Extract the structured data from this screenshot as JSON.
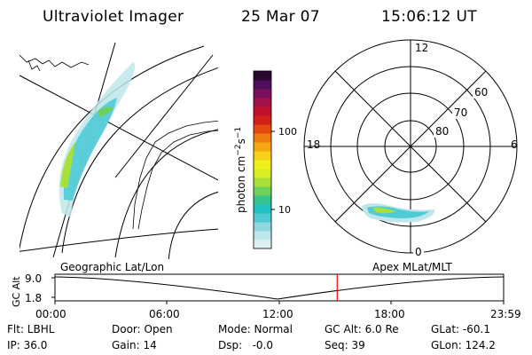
{
  "header": {
    "instrument": "Ultraviolet Imager",
    "date": "25 Mar 07",
    "time": "15:06:12 UT"
  },
  "colorbar": {
    "unit_label": "photon cm",
    "unit_exp1": "−2",
    "unit_s": "s",
    "unit_exp2": "−1",
    "tick_100": "100",
    "tick_10": "10",
    "colors": [
      "#dff0f2",
      "#bfe6ea",
      "#8fd8e0",
      "#4fcbd6",
      "#22c2c4",
      "#37c48f",
      "#6ed15a",
      "#a8e03a",
      "#d8ee22",
      "#f2f01a",
      "#f7d11a",
      "#f5a812",
      "#ee7b10",
      "#e24a12",
      "#d21f18",
      "#c0102c",
      "#a2104a",
      "#7a0f5e",
      "#4f0f5c",
      "#28082e"
    ]
  },
  "polar": {
    "mlt_labels": {
      "top": "12",
      "bottom": "0",
      "left": "18",
      "right": "6"
    },
    "lat_labels": {
      "outer": "60",
      "middle": "70",
      "inner": "80"
    }
  },
  "panels": {
    "left_label": "Geographic Lat/Lon",
    "right_label": "Apex MLat/MLT"
  },
  "altplot": {
    "ylabel": "GC Alt",
    "ytick_high": "9.0",
    "ytick_low": "1.8",
    "xticks": [
      "00:00",
      "06:00",
      "12:00",
      "18:00",
      "23:59"
    ],
    "current_time_fraction": 0.629,
    "marker_color": "#ff0000"
  },
  "info": {
    "flt": "Flt: LBHL",
    "ip": "IP: 36.0",
    "door": "Door: Open",
    "gain": "Gain: 14",
    "mode": "Mode: Normal",
    "dsp": "Dsp:   -0.0",
    "gcalt": "GC Alt: 6.0 Re",
    "seq": "Seq: 39",
    "glat": "GLat: -60.1",
    "glon": "GLon: 124.2"
  }
}
